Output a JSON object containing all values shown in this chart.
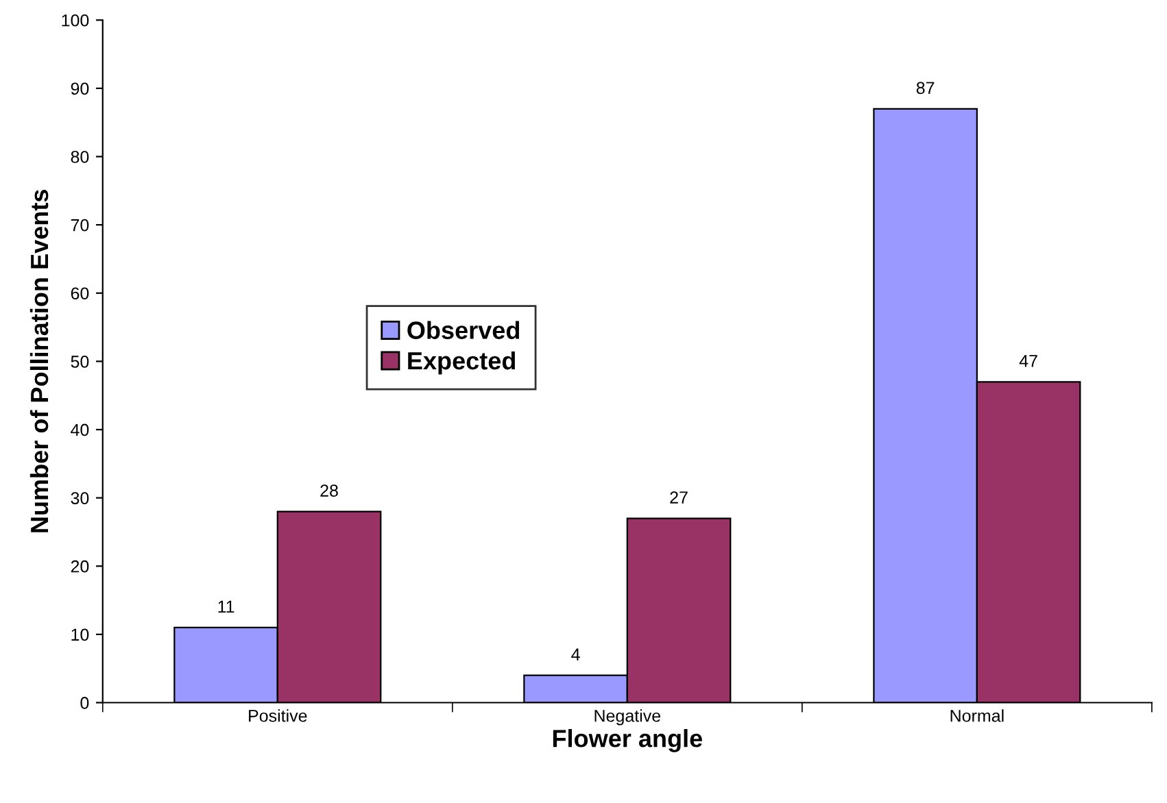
{
  "chart_data": {
    "type": "bar",
    "xlabel": "Flower angle",
    "ylabel": "Number of Pollination Events",
    "categories": [
      "Positive",
      "Negative",
      "Normal"
    ],
    "series": [
      {
        "name": "Observed",
        "color": "#9999ff",
        "values": [
          11,
          4,
          87
        ]
      },
      {
        "name": "Expected",
        "color": "#993366",
        "values": [
          28,
          27,
          47
        ]
      }
    ],
    "ylim": [
      0,
      100
    ],
    "yticks": [
      0,
      10,
      20,
      30,
      40,
      50,
      60,
      70,
      80,
      90,
      100
    ],
    "data_labels": true,
    "legend": "left",
    "grid": false
  }
}
